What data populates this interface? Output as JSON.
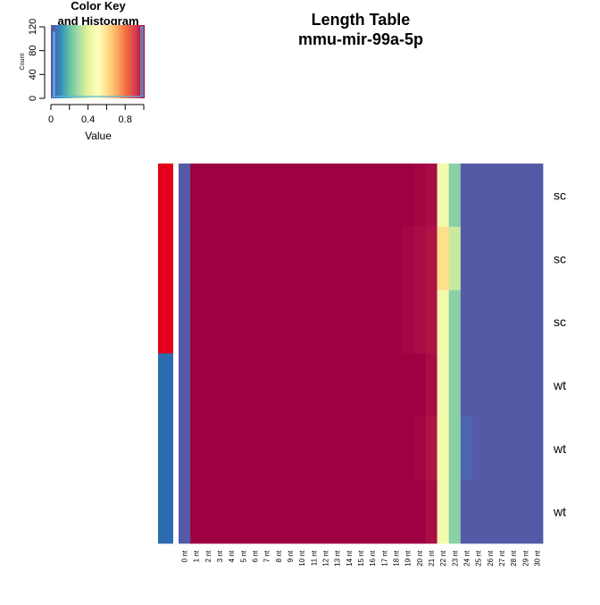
{
  "title": {
    "line1": "Length Table",
    "line2": "mmu-mir-99a-5p"
  },
  "color_key": {
    "title_line1": "Color Key",
    "title_line2": "and Histogram",
    "ylabel": "Count",
    "xlabel": "Value",
    "yticks": [
      0,
      40,
      80,
      120
    ],
    "xticks": [
      0,
      0.4,
      0.8
    ],
    "palette": [
      "#5e4fa2",
      "#3288bd",
      "#66c2a5",
      "#abdda4",
      "#e6f598",
      "#ffffbf",
      "#fee08b",
      "#fdae61",
      "#f46d43",
      "#d53e4f",
      "#9e0142"
    ]
  },
  "chart_data": {
    "type": "heatmap",
    "title": "Length Table mmu-mir-99a-5p",
    "columns": [
      "0 nt",
      "1 nt",
      "2 nt",
      "3 nt",
      "4 nt",
      "5 nt",
      "6 nt",
      "7 nt",
      "8 nt",
      "9 nt",
      "10 nt",
      "11 nt",
      "12 nt",
      "13 nt",
      "14 nt",
      "15 nt",
      "16 nt",
      "17 nt",
      "18 nt",
      "19 nt",
      "20 nt",
      "21 nt",
      "22 nt",
      "23 nt",
      "24 nt",
      "25 nt",
      "26 nt",
      "27 nt",
      "28 nt",
      "29 nt",
      "30 nt"
    ],
    "rows": [
      "sc",
      "sc",
      "sc",
      "wt",
      "wt",
      "wt"
    ],
    "row_groups": [
      {
        "name": "sc",
        "color": "#e3001b"
      },
      {
        "name": "sc",
        "color": "#e3001b"
      },
      {
        "name": "sc",
        "color": "#e3001b"
      },
      {
        "name": "wt",
        "color": "#2b6cb0"
      },
      {
        "name": "wt",
        "color": "#2b6cb0"
      },
      {
        "name": "wt",
        "color": "#2b6cb0"
      }
    ],
    "values": [
      [
        0.02,
        1,
        1,
        1,
        1,
        1,
        1,
        1,
        1,
        1,
        1,
        1,
        1,
        1,
        1,
        1,
        1,
        1,
        1,
        1,
        0.99,
        0.98,
        0.45,
        0.25,
        0.02,
        0.02,
        0.02,
        0.02,
        0.02,
        0.02,
        0.02
      ],
      [
        0.02,
        1,
        1,
        1,
        1,
        1,
        1,
        1,
        1,
        1,
        1,
        1,
        1,
        1,
        1,
        1,
        1,
        1,
        1,
        0.99,
        0.98,
        0.97,
        0.6,
        0.35,
        0.02,
        0.02,
        0.02,
        0.02,
        0.02,
        0.02,
        0.02
      ],
      [
        0.02,
        1,
        1,
        1,
        1,
        1,
        1,
        1,
        1,
        1,
        1,
        1,
        1,
        1,
        1,
        1,
        1,
        1,
        1,
        0.99,
        0.98,
        0.97,
        0.45,
        0.25,
        0.02,
        0.02,
        0.02,
        0.02,
        0.02,
        0.02,
        0.02
      ],
      [
        0.02,
        1,
        1,
        1,
        1,
        1,
        1,
        1,
        1,
        1,
        1,
        1,
        1,
        1,
        1,
        1,
        1,
        1,
        1,
        1,
        1,
        0.98,
        0.45,
        0.25,
        0.02,
        0.02,
        0.02,
        0.02,
        0.02,
        0.02,
        0.02
      ],
      [
        0.02,
        1,
        1,
        1,
        1,
        1,
        1,
        1,
        1,
        1,
        1,
        1,
        1,
        1,
        1,
        1,
        1,
        1,
        1,
        1,
        0.99,
        0.97,
        0.45,
        0.25,
        0.04,
        0.02,
        0.02,
        0.02,
        0.02,
        0.02,
        0.02
      ],
      [
        0.02,
        1,
        1,
        1,
        1,
        1,
        1,
        1,
        1,
        1,
        1,
        1,
        1,
        1,
        1,
        1,
        1,
        1,
        1,
        1,
        1,
        0.98,
        0.45,
        0.25,
        0.02,
        0.02,
        0.02,
        0.02,
        0.02,
        0.02,
        0.02
      ]
    ],
    "value_range": [
      0,
      1
    ]
  }
}
